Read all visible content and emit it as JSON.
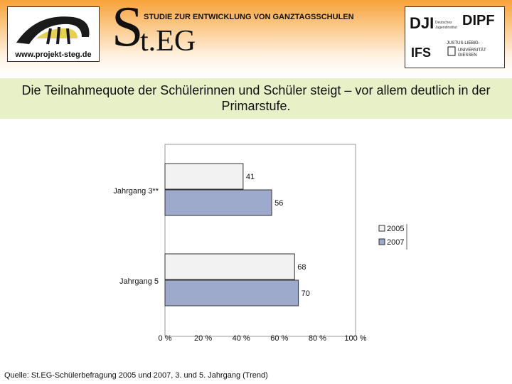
{
  "header": {
    "logo_url": "www.projekt-steg.de",
    "steg_letter": "S",
    "steg_rest": "t.EG",
    "subtitle": "STUDIE ZUR ENTWICKLUNG VON GANZTAGSSCHULEN",
    "partners": {
      "dji": "DJI",
      "dji_sub1": "Deutsches",
      "dji_sub2": "Jugendinstitut",
      "dipf": "DIPF",
      "ifs": "IFS",
      "uni1": "JUSTUS-LIEBIG-",
      "uni2": "UNIVERSITÄT",
      "uni3": "GIESSEN"
    }
  },
  "title": "Die Teilnahmequote der Schülerinnen und Schüler steigt – vor allem deutlich in der Primarstufe.",
  "source": "Quelle: St.EG-Schülerbefragung 2005 und 2007, 3. und 5. Jahrgang (Trend)",
  "colors": {
    "series_2005": "#f2f2f2",
    "series_2007": "#9daacc",
    "accent_orange": "#f7a23a",
    "title_bg": "#e8f0c8"
  },
  "chart_data": {
    "type": "bar",
    "orientation": "horizontal",
    "categories": [
      "Jahrgang 3**",
      "Jahrgang 5"
    ],
    "series": [
      {
        "name": "2005",
        "values": [
          41,
          68
        ]
      },
      {
        "name": "2007",
        "values": [
          56,
          70
        ]
      }
    ],
    "xlim": [
      0,
      100
    ],
    "x_ticks": [
      "0 %",
      "20 %",
      "40 %",
      "60 %",
      "80 %",
      "100 %"
    ],
    "legend_position": "right",
    "grid": false
  }
}
